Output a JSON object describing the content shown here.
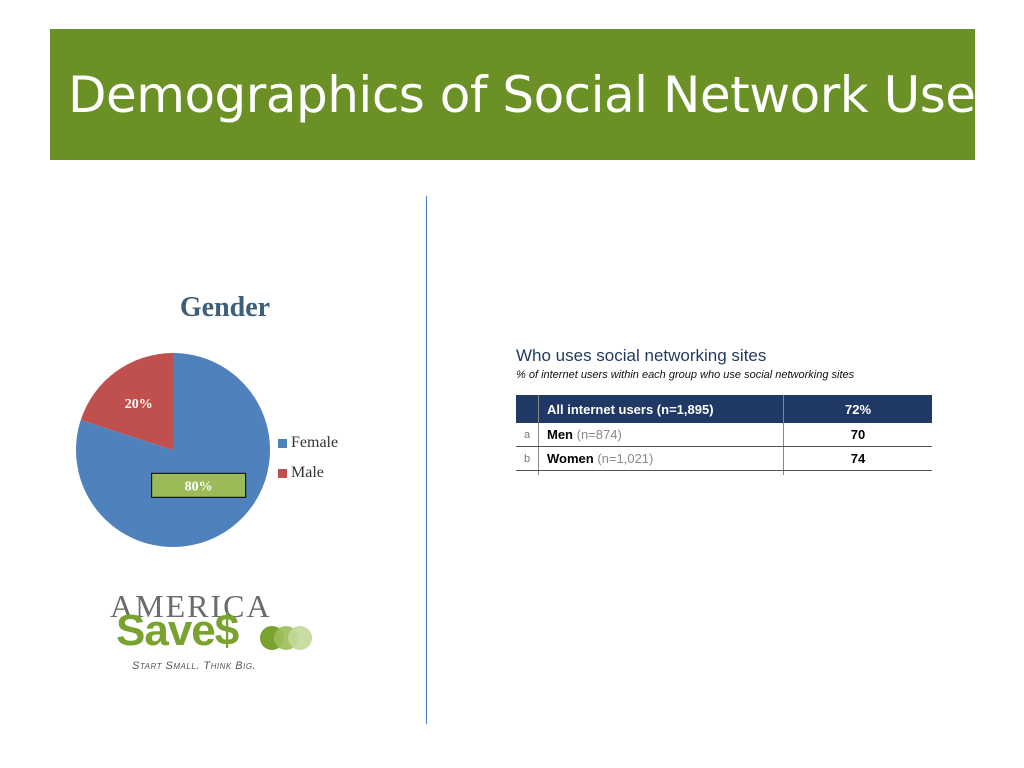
{
  "slide": {
    "title": "Demographics of Social Network Users"
  },
  "colors": {
    "title_bar": "#6b9126",
    "female": "#4f81bd",
    "male": "#c0504d",
    "label_box": "#9bbb59",
    "table_header": "#1f3864"
  },
  "chart_data": {
    "type": "pie",
    "title": "Gender",
    "slices": [
      {
        "label": "Female",
        "value": 80,
        "data_label": "80%",
        "color": "#4f81bd"
      },
      {
        "label": "Male",
        "value": 20,
        "data_label": "20%",
        "color": "#c0504d"
      }
    ],
    "legend": [
      "Female",
      "Male"
    ],
    "legend_position": "right"
  },
  "logo": {
    "america": "AMERICA",
    "saves": "Save$",
    "tagline": "Start Small. Think Big."
  },
  "table": {
    "title": "Who uses social networking sites",
    "subtitle": "% of internet users within each group who use social networking sites",
    "header": {
      "label": "All internet users (n=1,895)",
      "value": "72%"
    },
    "rows": [
      {
        "index": "a",
        "label": "Men",
        "n": "(n=874)",
        "value": "70"
      },
      {
        "index": "b",
        "label": "Women",
        "n": "(n=1,021)",
        "value": "74"
      }
    ]
  }
}
